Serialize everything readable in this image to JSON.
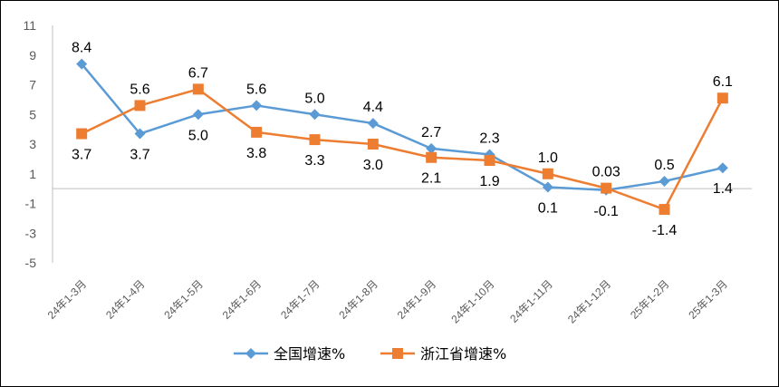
{
  "chart_data": {
    "type": "line",
    "categories": [
      "24年1-3月",
      "24年1-4月",
      "24年1-5月",
      "24年1-6月",
      "24年1-7月",
      "24年1-8月",
      "24年1-9月",
      "24年1-10月",
      "24年1-11月",
      "24年1-12月",
      "25年1-2月",
      "25年1-3月"
    ],
    "series": [
      {
        "name": "全国增速%",
        "color": "#5B9BD5",
        "marker": "diamond",
        "values": [
          8.4,
          3.7,
          5.0,
          5.6,
          5.0,
          4.4,
          2.7,
          2.3,
          0.1,
          -0.1,
          0.5,
          1.4
        ],
        "labels": [
          "8.4",
          "3.7",
          "5.0",
          "5.6",
          "5.0",
          "4.4",
          "2.7",
          "2.3",
          "0.1",
          "-0.1",
          "0.5",
          "1.4"
        ]
      },
      {
        "name": "浙江省增速%",
        "color": "#ED7D31",
        "marker": "square",
        "values": [
          3.7,
          5.6,
          6.7,
          3.8,
          3.3,
          3.0,
          2.1,
          1.9,
          1.0,
          0.03,
          -1.4,
          6.1
        ],
        "labels": [
          "3.7",
          "5.6",
          "6.7",
          "3.8",
          "3.3",
          "3.0",
          "2.1",
          "1.9",
          "1.0",
          "0.03",
          "-1.4",
          "6.1"
        ]
      }
    ],
    "y_ticks": [
      "11",
      "9",
      "7",
      "5",
      "3",
      "1",
      "-1",
      "-3",
      "-5"
    ],
    "ylim": [
      -5,
      11
    ],
    "grid": false,
    "legend_position": "bottom"
  }
}
